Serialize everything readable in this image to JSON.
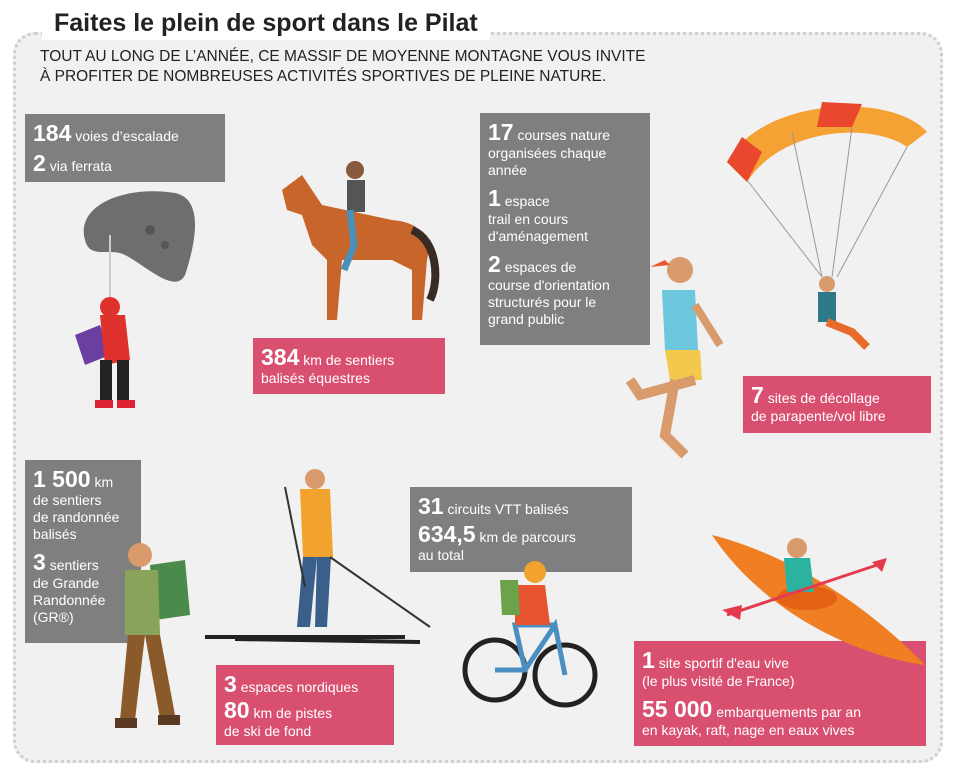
{
  "title": "Faites le plein de sport dans le Pilat",
  "subtitle_line1": "TOUT AU LONG DE L’ANNÉE, CE MASSIF DE MOYENNE MONTAGNE VOUS INVITE",
  "subtitle_line2": "À PROFITER DE NOMBREUSES ACTIVITÉS SPORTIVES DE PLEINE NATURE.",
  "climbing": {
    "n1": "184",
    "t1": "voies d’escalade",
    "n2": "2",
    "t2": "via ferrata"
  },
  "equestrian": {
    "n1": "384",
    "t1": "km de sentiers",
    "t2": "balisés équestres"
  },
  "trail": {
    "n1": "17",
    "t1a": "courses nature",
    "t1b": "organisées chaque",
    "t1c": "année",
    "n2": "1",
    "t2a": "espace",
    "t2b": "trail en cours",
    "t2c": "d'aménagement",
    "n3": "2",
    "t3a": "espaces de",
    "t3b": "course d'orientation",
    "t3c": "structurés pour le",
    "t3d": "grand public"
  },
  "paragliding": {
    "n1": "7",
    "t1": "sites de décollage",
    "t2": "de parapente/vol libre"
  },
  "hiking": {
    "n1": "1 500",
    "u1": "km",
    "t1a": "de sentiers",
    "t1b": "de randonnée",
    "t1c": "balisés",
    "n2": "3",
    "t2a": "sentiers",
    "t2b": "de Grande",
    "t2c": "Randonnée",
    "t2d": "(GR®)"
  },
  "nordic": {
    "n1": "3",
    "t1": "espaces nordiques",
    "n2": "80",
    "t2a": "km de pistes",
    "t2b": "de ski de fond"
  },
  "mtb": {
    "n1": "31",
    "t1": "circuits VTT balisés",
    "n2": "634,5",
    "t2a": "km de parcours",
    "t2b": "au total"
  },
  "whitewater": {
    "n1": "1",
    "t1a": "site sportif d'eau vive",
    "t1b": "(le plus visité de France)",
    "n2": "55 000",
    "t2a": "embarquements par an",
    "t2b": "en kayak, raft, nage en eaux vives"
  },
  "colors": {
    "gray": "#7f7f7f",
    "pink": "#d94f70",
    "background": "#f1f1f1"
  }
}
